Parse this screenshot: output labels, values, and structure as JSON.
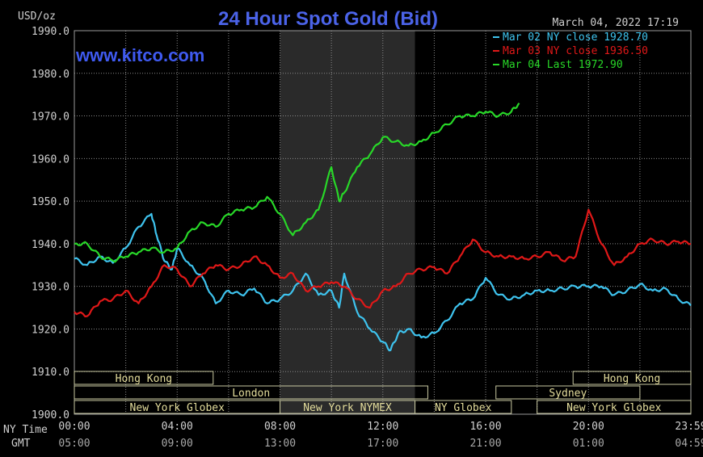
{
  "chart_data": {
    "type": "line",
    "title": "24 Hour Spot Gold (Bid)",
    "unit_label": "USD/oz",
    "watermark": "www.kitco.com",
    "timestamp": "March 04, 2022 17:19",
    "ylim": [
      1900,
      1990
    ],
    "y_ticks": [
      "1990.0",
      "1980.0",
      "1970.0",
      "1960.0",
      "1950.0",
      "1940.0",
      "1930.0",
      "1920.0",
      "1910.0",
      "1900.0"
    ],
    "y_tick_values": [
      1990,
      1980,
      1970,
      1960,
      1950,
      1940,
      1930,
      1920,
      1910,
      1900
    ],
    "x_range_hours": [
      0,
      23.983
    ],
    "x_row_label_ny": "NY Time",
    "x_row_label_gmt": "GMT",
    "x_ticks": [
      {
        "hour": 0,
        "ny": "00:00",
        "gmt": "05:00"
      },
      {
        "hour": 4,
        "ny": "04:00",
        "gmt": "09:00"
      },
      {
        "hour": 8,
        "ny": "08:00",
        "gmt": "13:00"
      },
      {
        "hour": 12,
        "ny": "12:00",
        "gmt": "17:00"
      },
      {
        "hour": 16,
        "ny": "16:00",
        "gmt": "21:00"
      },
      {
        "hour": 20,
        "ny": "20:00",
        "gmt": "01:00"
      },
      {
        "hour": 23.983,
        "ny": "23:59",
        "gmt": "04:59"
      }
    ],
    "highlight_hours": [
      8,
      13.25
    ],
    "grid": true,
    "legend_position": "top-right",
    "colors": {
      "background": "#000000",
      "plot_bg": "#000000",
      "grid": "#8a8a8a",
      "highlight": "#2a2a2a",
      "title": "#4b63e8",
      "watermark": "#3f5af0",
      "axis_text": "#d0d0d0"
    },
    "series": [
      {
        "name": "Mar 02 NY close 1928.70",
        "color": "#3ec3ee",
        "x": [
          0,
          0.5,
          1,
          1.5,
          2,
          2.5,
          3,
          3.2,
          3.5,
          3.8,
          4,
          4.5,
          5,
          5.5,
          6,
          6.5,
          7,
          7.5,
          8,
          8.5,
          9,
          9.5,
          10,
          10.3,
          10.5,
          11,
          11.5,
          12,
          12.3,
          12.6,
          13,
          13.5,
          14,
          14.5,
          15,
          15.5,
          16,
          16.5,
          17,
          17.5,
          18,
          18.5,
          19,
          19.5,
          20,
          20.5,
          21,
          21.5,
          22,
          22.5,
          23,
          23.5,
          23.983
        ],
        "y": [
          1936.5,
          1935,
          1937,
          1935.5,
          1939,
          1944,
          1947,
          1942,
          1936,
          1934,
          1939,
          1935,
          1932,
          1926,
          1929,
          1928,
          1929.5,
          1926,
          1927,
          1929,
          1933,
          1928,
          1929,
          1925,
          1933,
          1924,
          1920,
          1917,
          1915,
          1919,
          1920,
          1918,
          1919,
          1922,
          1926,
          1927,
          1932,
          1928,
          1927,
          1928,
          1929,
          1929,
          1929.5,
          1930,
          1930,
          1930,
          1928,
          1929,
          1930.5,
          1929,
          1929.5,
          1927,
          1925.5
        ],
        "values_note": ""
      },
      {
        "name": "Mar 03 NY close 1936.50",
        "color": "#e01818",
        "x": [
          0,
          0.5,
          1,
          1.5,
          2,
          2.5,
          3,
          3.5,
          4,
          4.5,
          5,
          5.5,
          6,
          6.5,
          7,
          7.5,
          8,
          8.5,
          9,
          9.5,
          10,
          10.5,
          11,
          11.5,
          12,
          12.5,
          13,
          13.5,
          14,
          14.5,
          15,
          15.5,
          16,
          16.5,
          17,
          17.5,
          18,
          18.5,
          19,
          19.5,
          20,
          20.5,
          21,
          21.5,
          22,
          22.5,
          23,
          23.5,
          23.983
        ],
        "y": [
          1924,
          1923,
          1926.5,
          1927,
          1929,
          1926,
          1930,
          1935,
          1934,
          1930,
          1933,
          1935,
          1934,
          1935,
          1937,
          1935,
          1932,
          1933,
          1929,
          1930,
          1931,
          1930,
          1927,
          1925,
          1929,
          1930,
          1933,
          1934,
          1934.5,
          1933,
          1937,
          1941,
          1938,
          1937,
          1937,
          1936.5,
          1937,
          1938,
          1936,
          1937,
          1948,
          1940,
          1935,
          1937,
          1940,
          1941,
          1940,
          1940.5,
          1940
        ]
      },
      {
        "name": "Mar 04 Last 1972.90",
        "color": "#28d828",
        "x": [
          0,
          0.5,
          1,
          1.5,
          2,
          2.5,
          3,
          3.5,
          4,
          4.5,
          5,
          5.5,
          6,
          6.5,
          7,
          7.5,
          8,
          8.5,
          9,
          9.5,
          10,
          10.3,
          10.5,
          11,
          11.5,
          12,
          12.5,
          13,
          13.5,
          14,
          14.5,
          15,
          15.5,
          16,
          16.5,
          17,
          17.3
        ],
        "y": [
          1940,
          1940,
          1937,
          1936,
          1937,
          1938,
          1939,
          1938,
          1939,
          1943,
          1945,
          1944,
          1947,
          1948,
          1948.5,
          1951,
          1947,
          1942,
          1945,
          1948,
          1958,
          1950,
          1952,
          1958,
          1961,
          1965,
          1964,
          1963,
          1964,
          1966,
          1968,
          1970,
          1970,
          1971,
          1970,
          1971,
          1973
        ]
      }
    ],
    "sessions": [
      {
        "label": "Hong Kong",
        "start": 0,
        "end": 5.4,
        "row": 1
      },
      {
        "label": "London",
        "start": 0,
        "end": 13.75,
        "row": 2
      },
      {
        "label": "New York Globex",
        "start": 0,
        "end": 8,
        "row": 3
      },
      {
        "label": "New York NYMEX",
        "start": 8,
        "end": 13.25,
        "row": 3
      },
      {
        "label": "NY Globex",
        "start": 13.25,
        "end": 17,
        "row": 3
      },
      {
        "label": "Hong Kong",
        "start": 19.4,
        "end": 23.983,
        "row": 1
      },
      {
        "label": "Sydney",
        "start": 16.4,
        "end": 22,
        "row": 2
      },
      {
        "label": "New York Globex",
        "start": 18,
        "end": 23.983,
        "row": 3
      }
    ]
  }
}
